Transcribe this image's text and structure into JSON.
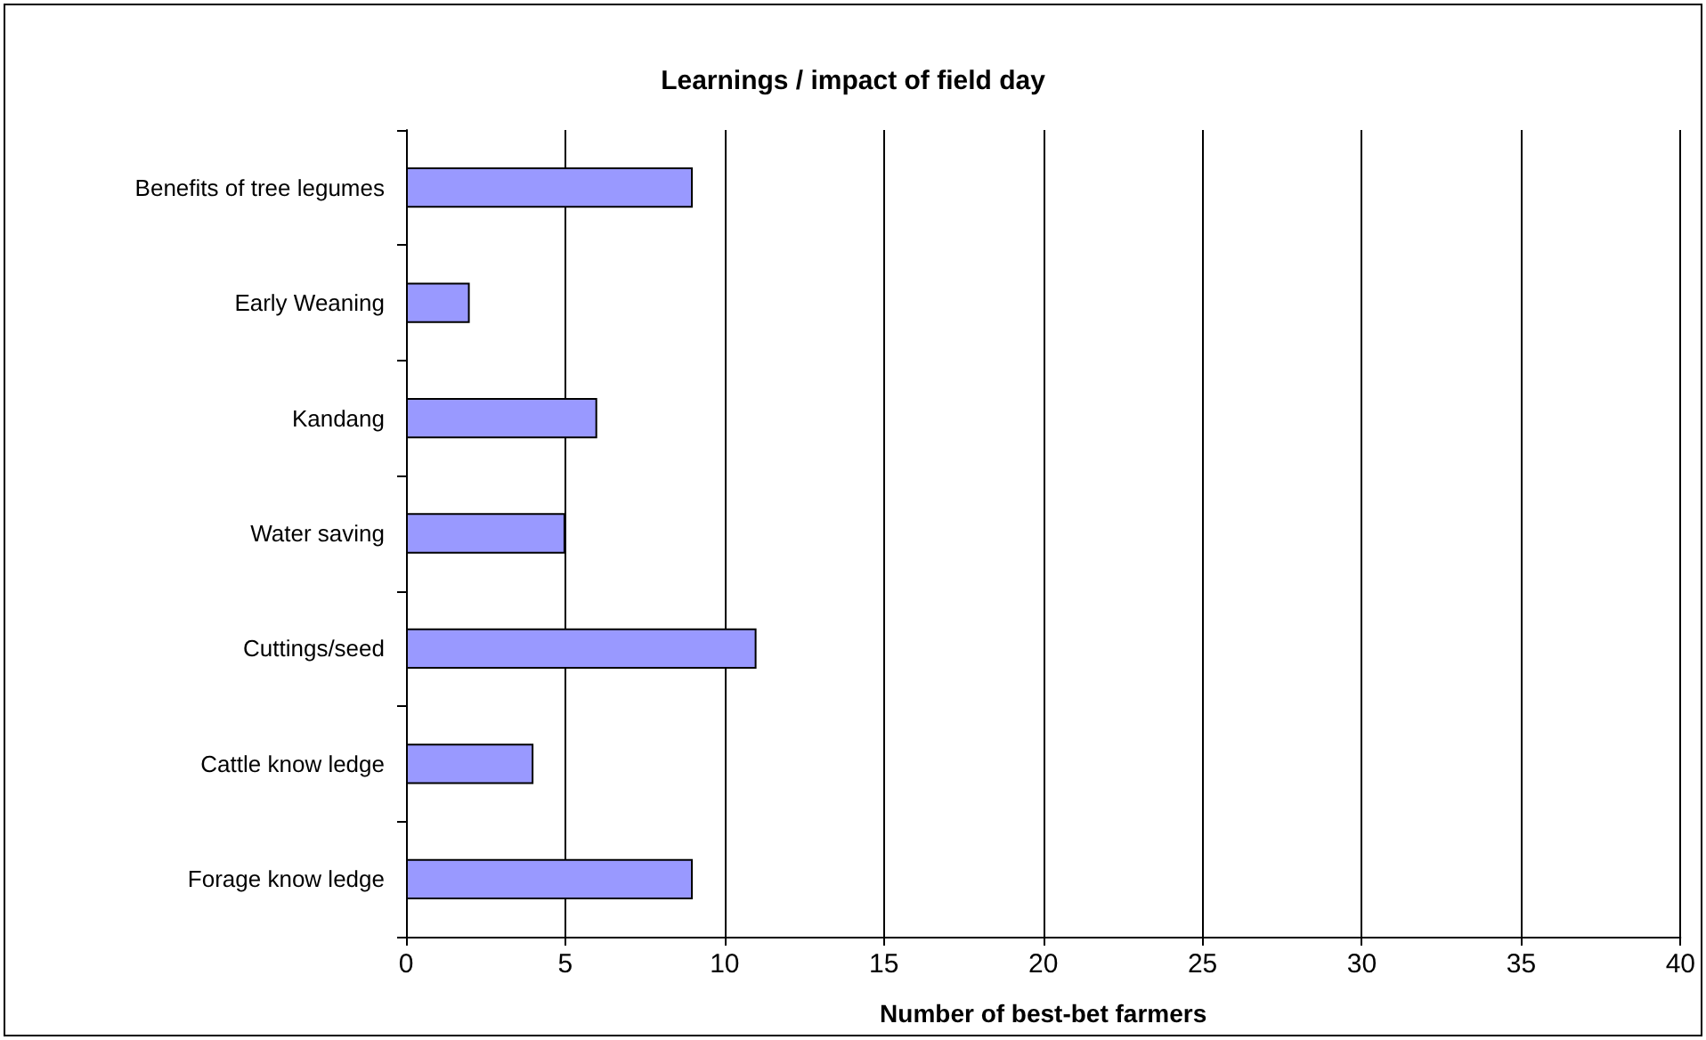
{
  "chart_data": {
    "type": "bar",
    "orientation": "horizontal",
    "title": "Learnings / impact of field day",
    "xlabel": "Number of best-bet farmers",
    "categories": [
      "Benefits of tree legumes",
      "Early Weaning",
      "Kandang",
      "Water saving",
      "Cuttings/seed",
      "Cattle know ledge",
      "Forage know ledge"
    ],
    "values": [
      9,
      2,
      6,
      5,
      11,
      4,
      9
    ],
    "color": "#9999ff",
    "xlim": [
      0,
      40
    ],
    "xticks": [
      0,
      5,
      10,
      15,
      20,
      25,
      30,
      35,
      40
    ],
    "grid": "x"
  }
}
